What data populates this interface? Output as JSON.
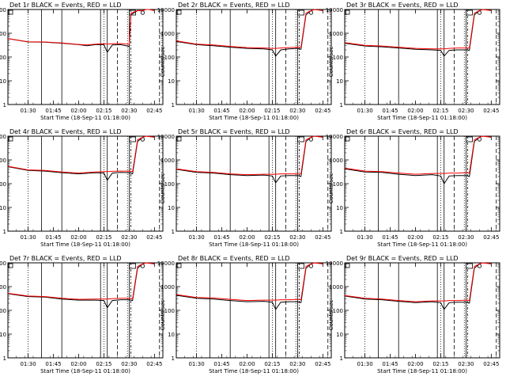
{
  "colors": {
    "events": "#000000",
    "lld": "#ff0000",
    "background": "#ffffff"
  },
  "chart_data": [
    {
      "type": "line",
      "title": "Det 1r BLACK = Events, RED = LLD",
      "xlabel": "Start Time (18-Sep-11 01:18:00)",
      "ylabel": "Counts/sec",
      "yscale": "log",
      "ylim": [
        1,
        10000
      ],
      "xlim_minutes": [
        78,
        170
      ],
      "xtick_labels": [
        "01:30",
        "01:45",
        "02:00",
        "02:15",
        "02:30",
        "02:45"
      ],
      "ytick_labels": [
        "1",
        "10",
        "100",
        "1000",
        "10000"
      ],
      "series": [
        {
          "name": "Events",
          "x": [
            78,
            90,
            100,
            110,
            120,
            125,
            130,
            135,
            137,
            140,
            145,
            150,
            151,
            155,
            158,
            160,
            162,
            165
          ],
          "values": [
            600,
            430,
            420,
            380,
            330,
            300,
            330,
            330,
            160,
            320,
            330,
            280,
            6000,
            9000,
            9000,
            10000,
            10000,
            9000
          ]
        },
        {
          "name": "LLD",
          "x": [
            78,
            90,
            100,
            110,
            120,
            125,
            130,
            135,
            137,
            140,
            145,
            150,
            151,
            155,
            158,
            160,
            162,
            165
          ],
          "values": [
            600,
            440,
            430,
            390,
            340,
            320,
            350,
            360,
            350,
            360,
            370,
            340,
            7000,
            9000,
            9000,
            10000,
            10000,
            9000
          ]
        }
      ]
    },
    {
      "type": "line",
      "title": "Det 2r BLACK = Events, RED = LLD",
      "xlabel": "Start Time (18-Sep-11 01:18:00)",
      "ylabel": "Counts/sec",
      "yscale": "log",
      "ylim": [
        1,
        10000
      ],
      "xlim_minutes": [
        78,
        170
      ],
      "xtick_labels": [
        "01:30",
        "01:45",
        "02:00",
        "02:15",
        "02:30",
        "02:45"
      ],
      "ytick_labels": [
        "1",
        "10",
        "100",
        "1000",
        "10000"
      ],
      "series": [
        {
          "name": "Events",
          "x": [
            78,
            90,
            100,
            110,
            120,
            130,
            135,
            137,
            140,
            145,
            150,
            152,
            155,
            158,
            160,
            163,
            165
          ],
          "values": [
            450,
            330,
            300,
            260,
            230,
            220,
            200,
            110,
            200,
            220,
            230,
            210,
            6000,
            9000,
            10000,
            9500,
            9000
          ]
        },
        {
          "name": "LLD",
          "x": [
            78,
            90,
            100,
            110,
            120,
            130,
            135,
            137,
            140,
            145,
            150,
            152,
            155,
            158,
            160,
            163,
            165
          ],
          "values": [
            480,
            350,
            320,
            280,
            250,
            240,
            230,
            230,
            240,
            250,
            260,
            260,
            7000,
            9000,
            10000,
            9500,
            9000
          ]
        }
      ]
    },
    {
      "type": "line",
      "title": "Det 3r BLACK = Events, RED = LLD",
      "xlabel": "Start Time (18-Sep-11 01:18:00)",
      "ylabel": "Counts/sec",
      "yscale": "log",
      "ylim": [
        1,
        10000
      ],
      "xlim_minutes": [
        78,
        170
      ],
      "xtick_labels": [
        "01:30",
        "01:45",
        "02:00",
        "02:15",
        "02:30",
        "02:45"
      ],
      "ytick_labels": [
        "1",
        "10",
        "100",
        "1000",
        "10000"
      ],
      "series": [
        {
          "name": "Events",
          "x": [
            78,
            90,
            100,
            110,
            120,
            130,
            135,
            137,
            140,
            145,
            150,
            152,
            155,
            158,
            160,
            163,
            165
          ],
          "values": [
            380,
            290,
            270,
            240,
            210,
            200,
            190,
            110,
            190,
            200,
            200,
            190,
            6000,
            9000,
            10000,
            9500,
            9000
          ]
        },
        {
          "name": "LLD",
          "x": [
            78,
            90,
            100,
            110,
            120,
            130,
            135,
            137,
            140,
            145,
            150,
            152,
            155,
            158,
            160,
            163,
            165
          ],
          "values": [
            400,
            310,
            290,
            260,
            230,
            220,
            220,
            220,
            230,
            240,
            240,
            240,
            7000,
            9000,
            10000,
            9500,
            9000
          ]
        }
      ]
    },
    {
      "type": "line",
      "title": "Det 4r BLACK = Events, RED = LLD",
      "xlabel": "Start Time (18-Sep-11 01:18:00)",
      "ylabel": "Counts/sec",
      "yscale": "log",
      "ylim": [
        1,
        10000
      ],
      "xlim_minutes": [
        78,
        170
      ],
      "xtick_labels": [
        "01:30",
        "01:45",
        "02:00",
        "02:15",
        "02:30",
        "02:45"
      ],
      "ytick_labels": [
        "1",
        "10",
        "100",
        "1000",
        "10000"
      ],
      "series": [
        {
          "name": "Events",
          "x": [
            78,
            90,
            100,
            110,
            120,
            130,
            135,
            137,
            140,
            145,
            150,
            152,
            155,
            158,
            160,
            163,
            165
          ],
          "values": [
            520,
            360,
            340,
            290,
            260,
            290,
            280,
            140,
            280,
            300,
            290,
            260,
            6000,
            9000,
            10000,
            9500,
            9000
          ]
        },
        {
          "name": "LLD",
          "x": [
            78,
            90,
            100,
            110,
            120,
            130,
            135,
            137,
            140,
            145,
            150,
            152,
            155,
            158,
            160,
            163,
            165
          ],
          "values": [
            540,
            380,
            360,
            310,
            280,
            310,
            320,
            320,
            330,
            340,
            340,
            320,
            7000,
            9000,
            10000,
            9500,
            9000
          ]
        }
      ]
    },
    {
      "type": "line",
      "title": "Det 5r BLACK = Events, RED = LLD",
      "xlabel": "Start Time (18-Sep-11 01:18:00)",
      "ylabel": "Counts/sec",
      "yscale": "log",
      "ylim": [
        1,
        10000
      ],
      "xlim_minutes": [
        78,
        170
      ],
      "xtick_labels": [
        "01:30",
        "01:45",
        "02:00",
        "02:15",
        "02:30",
        "02:45"
      ],
      "ytick_labels": [
        "1",
        "10",
        "100",
        "1000",
        "10000"
      ],
      "series": [
        {
          "name": "Events",
          "x": [
            78,
            90,
            100,
            110,
            120,
            130,
            135,
            137,
            140,
            145,
            150,
            152,
            155,
            158,
            160,
            163,
            165
          ],
          "values": [
            400,
            300,
            280,
            240,
            220,
            230,
            210,
            110,
            210,
            220,
            220,
            200,
            6000,
            9000,
            10000,
            9500,
            9000
          ]
        },
        {
          "name": "LLD",
          "x": [
            78,
            90,
            100,
            110,
            120,
            130,
            135,
            137,
            140,
            145,
            150,
            152,
            155,
            158,
            160,
            163,
            165
          ],
          "values": [
            420,
            320,
            300,
            260,
            240,
            250,
            250,
            250,
            260,
            260,
            260,
            260,
            7000,
            9000,
            10000,
            9500,
            9000
          ]
        }
      ]
    },
    {
      "type": "line",
      "title": "Det 6r BLACK = Events, RED = LLD",
      "xlabel": "Start Time (18-Sep-11 01:18:00)",
      "ylabel": "Counts/sec",
      "yscale": "log",
      "ylim": [
        1,
        10000
      ],
      "xlim_minutes": [
        78,
        170
      ],
      "xtick_labels": [
        "01:30",
        "01:45",
        "02:00",
        "02:15",
        "02:30",
        "02:45"
      ],
      "ytick_labels": [
        "1",
        "10",
        "100",
        "1000",
        "10000"
      ],
      "series": [
        {
          "name": "Events",
          "x": [
            78,
            90,
            100,
            110,
            120,
            130,
            135,
            137,
            140,
            145,
            150,
            152,
            155,
            158,
            160,
            163,
            165
          ],
          "values": [
            420,
            310,
            300,
            250,
            220,
            240,
            210,
            100,
            210,
            220,
            220,
            200,
            6000,
            9000,
            10000,
            9500,
            9000
          ]
        },
        {
          "name": "LLD",
          "x": [
            78,
            90,
            100,
            110,
            120,
            130,
            135,
            137,
            140,
            145,
            150,
            152,
            155,
            158,
            160,
            163,
            165
          ],
          "values": [
            450,
            340,
            320,
            280,
            250,
            270,
            270,
            270,
            280,
            280,
            290,
            280,
            7000,
            9000,
            10000,
            9500,
            9000
          ]
        }
      ]
    },
    {
      "type": "line",
      "title": "Det 7r BLACK = Events, RED = LLD",
      "xlabel": "Start Time (18-Sep-11 01:18:00)",
      "ylabel": "Counts/sec",
      "yscale": "log",
      "ylim": [
        1,
        10000
      ],
      "xlim_minutes": [
        78,
        170
      ],
      "xtick_labels": [
        "01:30",
        "01:45",
        "02:00",
        "02:15",
        "02:30",
        "02:45"
      ],
      "ytick_labels": [
        "1",
        "10",
        "100",
        "1000",
        "10000"
      ],
      "series": [
        {
          "name": "Events",
          "x": [
            78,
            90,
            100,
            110,
            120,
            130,
            135,
            137,
            140,
            145,
            150,
            152,
            155,
            158,
            160,
            163,
            165
          ],
          "values": [
            500,
            380,
            360,
            300,
            270,
            270,
            260,
            130,
            260,
            280,
            280,
            260,
            6000,
            9000,
            10000,
            9500,
            9000
          ]
        },
        {
          "name": "LLD",
          "x": [
            78,
            90,
            100,
            110,
            120,
            130,
            135,
            137,
            140,
            145,
            150,
            152,
            155,
            158,
            160,
            163,
            165
          ],
          "values": [
            520,
            400,
            380,
            320,
            290,
            300,
            300,
            300,
            310,
            320,
            320,
            310,
            7000,
            9000,
            10000,
            9500,
            9000
          ]
        }
      ]
    },
    {
      "type": "line",
      "title": "Det 8r BLACK = Events, RED = LLD",
      "xlabel": "Start Time (18-Sep-11 01:18:00)",
      "ylabel": "Counts/sec",
      "yscale": "log",
      "ylim": [
        1,
        10000
      ],
      "xlim_minutes": [
        78,
        170
      ],
      "xtick_labels": [
        "01:30",
        "01:45",
        "02:00",
        "02:15",
        "02:30",
        "02:45"
      ],
      "ytick_labels": [
        "1",
        "10",
        "100",
        "1000",
        "10000"
      ],
      "series": [
        {
          "name": "Events",
          "x": [
            78,
            90,
            100,
            110,
            120,
            130,
            135,
            137,
            140,
            145,
            150,
            152,
            155,
            158,
            160,
            163,
            165
          ],
          "values": [
            430,
            320,
            300,
            260,
            230,
            240,
            220,
            110,
            220,
            230,
            230,
            210,
            6000,
            9000,
            10000,
            9500,
            9000
          ]
        },
        {
          "name": "LLD",
          "x": [
            78,
            90,
            100,
            110,
            120,
            130,
            135,
            137,
            140,
            145,
            150,
            152,
            155,
            158,
            160,
            163,
            165
          ],
          "values": [
            460,
            350,
            330,
            290,
            260,
            270,
            270,
            270,
            280,
            280,
            290,
            280,
            7000,
            9000,
            10000,
            9500,
            9000
          ]
        }
      ]
    },
    {
      "type": "line",
      "title": "Det 9r BLACK = Events, RED = LLD",
      "xlabel": "Start Time (18-Sep-11 01:18:00)",
      "ylabel": "Counts/sec",
      "yscale": "log",
      "ylim": [
        1,
        10000
      ],
      "xlim_minutes": [
        78,
        170
      ],
      "xtick_labels": [
        "01:30",
        "01:45",
        "02:00",
        "02:15",
        "02:30",
        "02:45"
      ],
      "ytick_labels": [
        "1",
        "10",
        "100",
        "1000",
        "10000"
      ],
      "series": [
        {
          "name": "Events",
          "x": [
            78,
            90,
            100,
            110,
            120,
            130,
            135,
            137,
            140,
            145,
            150,
            152,
            155,
            158,
            160,
            163,
            165
          ],
          "values": [
            400,
            300,
            280,
            240,
            210,
            230,
            210,
            110,
            210,
            220,
            220,
            200,
            6000,
            9000,
            10000,
            9500,
            9000
          ]
        },
        {
          "name": "LLD",
          "x": [
            78,
            90,
            100,
            110,
            120,
            130,
            135,
            137,
            140,
            145,
            150,
            152,
            155,
            158,
            160,
            163,
            165
          ],
          "values": [
            420,
            320,
            300,
            260,
            230,
            250,
            250,
            250,
            260,
            260,
            270,
            260,
            7000,
            9000,
            10000,
            9500,
            9000
          ]
        }
      ]
    }
  ],
  "markers": {
    "dotted_lines_min": [
      90,
      135,
      149
    ],
    "solid_lines_min": [
      98,
      110,
      133,
      137,
      150
    ],
    "dashed_lines_min": [
      143,
      168
    ],
    "dashdot_lines_min": [
      151
    ]
  }
}
